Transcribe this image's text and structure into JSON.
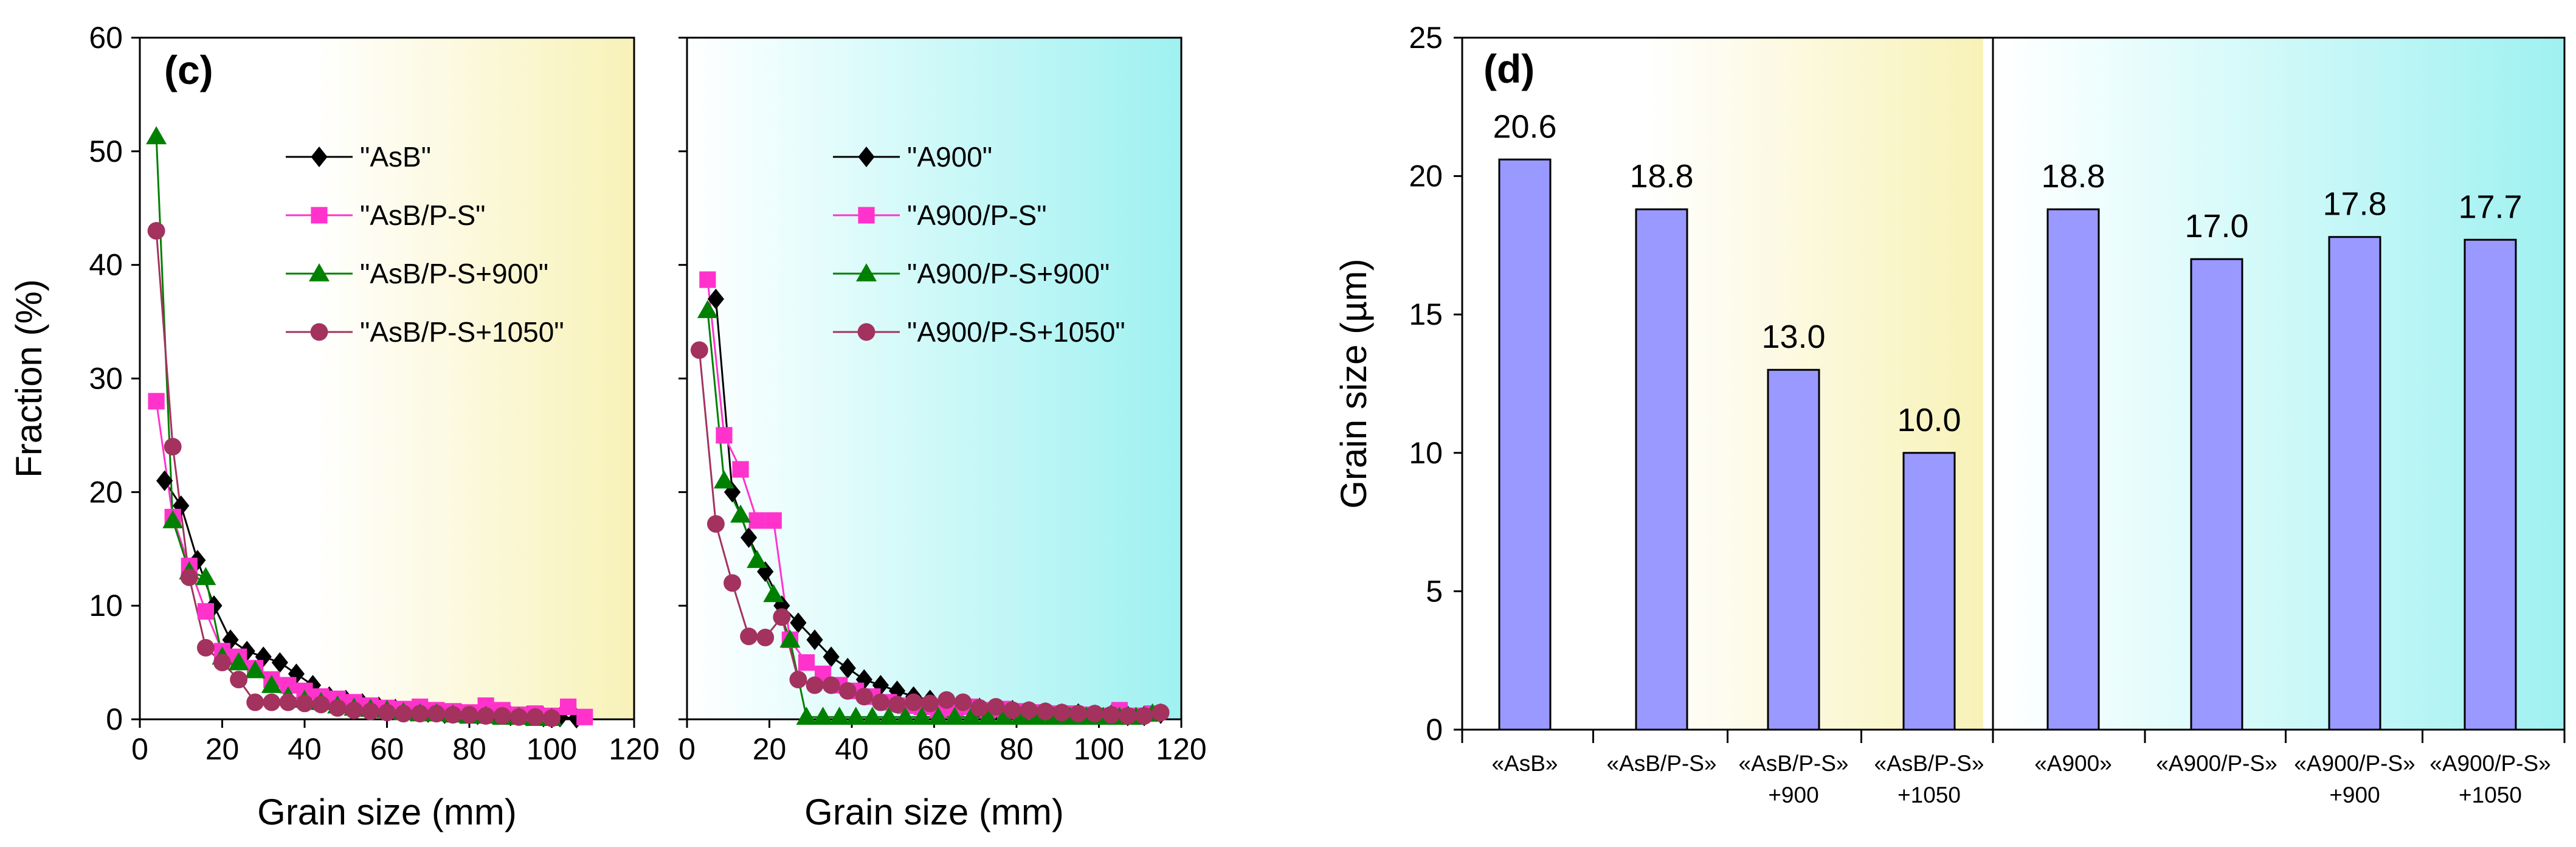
{
  "chart_data": [
    {
      "panel": "(c)",
      "type": "line",
      "ylabel": "Fraction (%)",
      "xlabel": "Grain size (mm)",
      "ylim": [
        0,
        60
      ],
      "yticks": [
        0,
        10,
        20,
        30,
        40,
        50,
        60
      ],
      "subplots": [
        {
          "xlim": [
            0,
            120
          ],
          "xticks": [
            0,
            20,
            40,
            60,
            80,
            100,
            120
          ],
          "series": [
            {
              "name": "\"AsB\"",
              "color": "#000000",
              "marker": "diamond",
              "x": [
                6,
                10,
                14,
                18,
                22,
                26,
                30,
                34,
                38,
                42,
                46,
                50,
                54,
                58,
                62,
                66,
                70,
                74,
                78,
                82,
                86,
                90,
                94,
                98,
                102,
                106
              ],
              "y": [
                21,
                18.8,
                14,
                10,
                7,
                6,
                5.5,
                5,
                4,
                3,
                2,
                1.7,
                1.4,
                1.1,
                0.9,
                0.7,
                0.6,
                0.5,
                0.5,
                0.4,
                0.4,
                0.3,
                0.3,
                0.2,
                0.2,
                0.1
              ]
            },
            {
              "name": "\"AsB/P-S\"",
              "color": "#ff33cc",
              "marker": "square",
              "x": [
                4,
                8,
                12,
                16,
                20,
                24,
                28,
                32,
                36,
                40,
                44,
                48,
                52,
                56,
                60,
                64,
                68,
                72,
                76,
                80,
                84,
                88,
                92,
                96,
                100,
                104,
                108
              ],
              "y": [
                28,
                17.8,
                13.5,
                9.5,
                6,
                5.5,
                4.5,
                3.5,
                3,
                2.5,
                2,
                1.8,
                1.5,
                1.2,
                1,
                0.9,
                1.1,
                0.8,
                0.7,
                0.6,
                1.2,
                0.8,
                0.4,
                0.5,
                0.3,
                1.1,
                0.2
              ]
            },
            {
              "name": "\"AsB/P-S+900\"",
              "color": "#008000",
              "marker": "triangle",
              "x": [
                4,
                8,
                12,
                16,
                20,
                24,
                28,
                32,
                36,
                40,
                44,
                48,
                52,
                56,
                60,
                64,
                68,
                72,
                76,
                80,
                84,
                88,
                92,
                96,
                100
              ],
              "y": [
                51.3,
                17.5,
                13,
                12.5,
                5.5,
                5,
                4.3,
                3,
                2,
                1.7,
                1.5,
                1.2,
                1,
                0.9,
                0.8,
                0.6,
                0.5,
                0.5,
                0.4,
                0.3,
                0.3,
                0.2,
                0.2,
                0.1,
                0.1
              ]
            },
            {
              "name": "\"AsB/P-S+1050\"",
              "color": "#a3325f",
              "marker": "circle",
              "x": [
                4,
                8,
                12,
                16,
                20,
                24,
                28,
                32,
                36,
                40,
                44,
                48,
                52,
                56,
                60,
                64,
                68,
                72,
                76,
                80,
                84,
                88,
                92,
                96,
                100
              ],
              "y": [
                43,
                24,
                12.5,
                6.3,
                5,
                3.5,
                1.5,
                1.5,
                1.5,
                1.4,
                1.3,
                1,
                0.8,
                0.7,
                0.6,
                0.5,
                0.5,
                0.5,
                0.4,
                0.4,
                0.3,
                0.3,
                0.2,
                0.2,
                0.1
              ]
            }
          ]
        },
        {
          "xlim": [
            0,
            120
          ],
          "xticks": [
            0,
            20,
            40,
            60,
            80,
            100,
            120
          ],
          "series": [
            {
              "name": "\"A900\"",
              "color": "#000000",
              "marker": "diamond",
              "x": [
                7,
                11,
                15,
                19,
                23,
                27,
                31,
                35,
                39,
                43,
                47,
                51,
                55,
                59,
                63,
                67,
                71,
                75,
                79,
                83,
                87,
                91,
                95,
                99,
                103,
                107,
                111,
                115
              ],
              "y": [
                37,
                20,
                16,
                13,
                10,
                8.5,
                7,
                5.5,
                4.5,
                3.5,
                3,
                2.5,
                2,
                1.7,
                1.4,
                1.2,
                1,
                0.9,
                0.8,
                0.7,
                0.6,
                0.5,
                0.5,
                0.4,
                0.4,
                0.3,
                0.3,
                0.5
              ]
            },
            {
              "name": "\"A900/P-S\"",
              "color": "#ff33cc",
              "marker": "square",
              "x": [
                5,
                9,
                13,
                17,
                21,
                25,
                29,
                33,
                37,
                41,
                45,
                49,
                53,
                57,
                61,
                65,
                69,
                73,
                77,
                81,
                85,
                89,
                93,
                97,
                101,
                105,
                109,
                113
              ],
              "y": [
                38.7,
                25,
                22,
                17.5,
                17.5,
                7,
                5,
                4,
                3,
                2.5,
                2,
                1.5,
                1.2,
                1.1,
                0.8,
                1,
                1.1,
                0.8,
                0.9,
                0.7,
                0.6,
                0.5,
                0.5,
                0.4,
                0.3,
                0.8,
                0.3,
                0.5
              ]
            },
            {
              "name": "\"A900/P-S+900\"",
              "color": "#008000",
              "marker": "triangle",
              "x": [
                5,
                9,
                13,
                17,
                21,
                25,
                29,
                33,
                37,
                41,
                45,
                49,
                53,
                57,
                61,
                65,
                69,
                73,
                77,
                81,
                85,
                89,
                93,
                97,
                101,
                105,
                109,
                113
              ],
              "y": [
                36,
                21,
                18,
                14,
                11,
                7,
                0.2,
                0.2,
                0.2,
                0.2,
                0.2,
                0.2,
                0.2,
                0.2,
                0.2,
                0.2,
                0.2,
                0.2,
                0.2,
                0.2,
                0.2,
                0.2,
                0.2,
                0.2,
                0.2,
                0.2,
                0.2,
                0.5
              ]
            },
            {
              "name": "\"A900/P-S+1050\"",
              "color": "#a3325f",
              "marker": "circle",
              "x": [
                3,
                7,
                11,
                15,
                19,
                23,
                27,
                31,
                35,
                39,
                43,
                47,
                51,
                55,
                59,
                63,
                67,
                71,
                75,
                79,
                83,
                87,
                91,
                95,
                99,
                103,
                107,
                111,
                115
              ],
              "y": [
                32.5,
                17.2,
                12,
                7.3,
                7.2,
                9,
                3.5,
                3,
                3,
                2.5,
                2,
                1.5,
                1.3,
                1.5,
                1.4,
                1.7,
                1.5,
                1,
                1.1,
                0.8,
                0.8,
                0.7,
                0.6,
                0.5,
                0.5,
                0.4,
                0.3,
                0.3,
                0.6
              ]
            }
          ]
        }
      ]
    },
    {
      "panel": "(d)",
      "type": "bar",
      "ylabel": "Grain size (µm)",
      "ylim": [
        0,
        25
      ],
      "yticks": [
        0,
        5,
        10,
        15,
        20,
        25
      ],
      "bar_color": "#9999ff",
      "groups": [
        {
          "categories": [
            [
              "«AsB»"
            ],
            [
              "«AsB/P-S»"
            ],
            [
              "«AsB/P-S»",
              "+900"
            ],
            [
              "«AsB/P-S»",
              "+1050"
            ]
          ],
          "values": [
            20.6,
            18.8,
            13.0,
            10.0
          ],
          "labels": [
            "20.6",
            "18.8",
            "13.0",
            "10.0"
          ]
        },
        {
          "categories": [
            [
              "«A900»"
            ],
            [
              "«A900/P-S»"
            ],
            [
              "«A900/P-S»",
              "+900"
            ],
            [
              "«A900/P-S»",
              "+1050"
            ]
          ],
          "values": [
            18.8,
            17.0,
            17.8,
            17.7
          ],
          "labels": [
            "18.8",
            "17.0",
            "17.8",
            "17.7"
          ]
        }
      ]
    }
  ]
}
